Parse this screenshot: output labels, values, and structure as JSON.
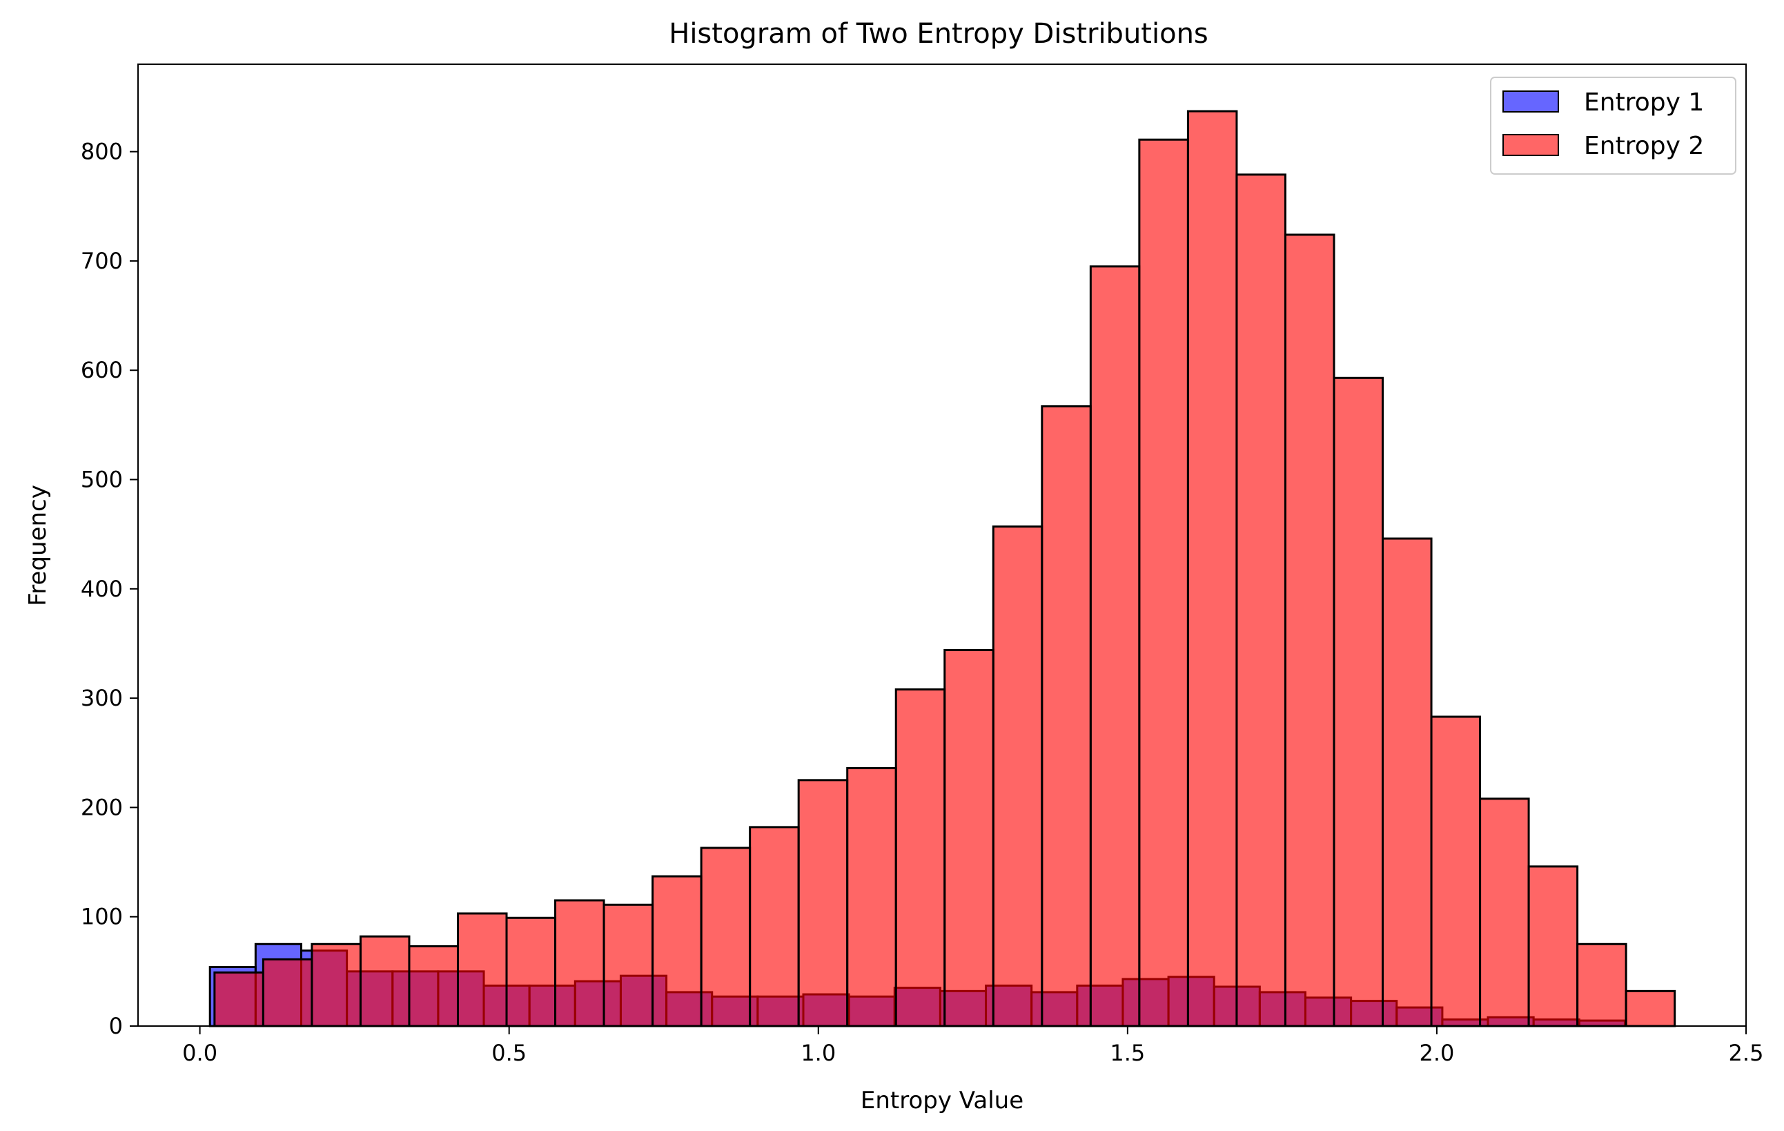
{
  "chart_data": {
    "type": "bar",
    "title": "Histogram of Two Entropy Distributions",
    "xlabel": "Entropy Value",
    "ylabel": "Frequency",
    "xlim": [
      -0.1,
      2.5
    ],
    "ylim": [
      0,
      880
    ],
    "xticks": [
      0.0,
      0.5,
      1.0,
      1.5,
      2.0,
      2.5
    ],
    "xtick_labels": [
      "0.0",
      "0.5",
      "1.0",
      "1.5",
      "2.0",
      "2.5"
    ],
    "yticks": [
      0,
      100,
      200,
      300,
      400,
      500,
      600,
      700,
      800
    ],
    "ytick_labels": [
      "0",
      "100",
      "200",
      "300",
      "400",
      "500",
      "600",
      "700",
      "800"
    ],
    "legend": {
      "position": "top-right",
      "entries": [
        "Entropy 1",
        "Entropy 2"
      ]
    },
    "colors": {
      "entropy1_fill": "#0000ff",
      "entropy2_fill": "#ff0000",
      "edge": "#000000",
      "alpha": 0.6
    },
    "series": [
      {
        "name": "Entropy 1",
        "bin_start": 0.0163,
        "bin_width": 0.0738,
        "values": [
          54,
          75,
          69,
          50,
          50,
          50,
          37,
          37,
          41,
          46,
          31,
          27,
          27,
          29,
          27,
          35,
          32,
          37,
          31,
          37,
          43,
          45,
          36,
          31,
          26,
          23,
          17,
          6,
          8,
          6,
          5
        ]
      },
      {
        "name": "Entropy 2",
        "bin_start": 0.0237,
        "bin_width": 0.0787,
        "values": [
          49,
          61,
          75,
          82,
          73,
          103,
          99,
          115,
          111,
          137,
          163,
          182,
          225,
          236,
          308,
          344,
          457,
          567,
          695,
          811,
          837,
          779,
          724,
          593,
          446,
          283,
          208,
          146,
          75,
          32
        ]
      }
    ]
  }
}
